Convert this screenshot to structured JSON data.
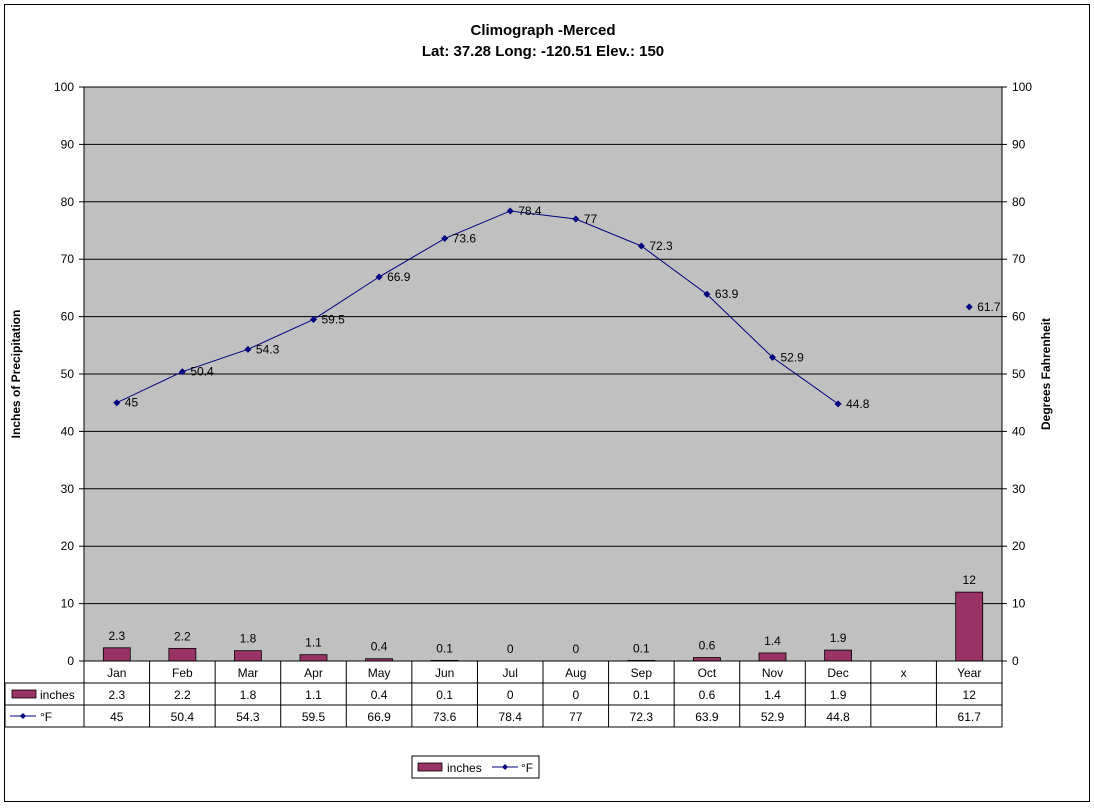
{
  "chart_data": {
    "type": "bar",
    "title": "Climograph -Merced",
    "subtitle": "Lat: 37.28 Long: -120.51 Elev.: 150",
    "ylabel_left": "Inches of Precipitation",
    "ylabel_right": "Degrees Fahrenheit",
    "ylim": [
      0,
      100
    ],
    "yticks": [
      "0",
      "10",
      "20",
      "30",
      "40",
      "50",
      "60",
      "70",
      "80",
      "90",
      "100"
    ],
    "categories": [
      "Jan",
      "Feb",
      "Mar",
      "Apr",
      "May",
      "Jun",
      "Jul",
      "Aug",
      "Sep",
      "Oct",
      "Nov",
      "Dec",
      "x",
      "Year"
    ],
    "grid": true,
    "legend_position": "bottom",
    "series": [
      {
        "name": "inches",
        "kind": "bar",
        "color": "#993366",
        "values": [
          2.3,
          2.2,
          1.8,
          1.1,
          0.4,
          0.1,
          0,
          0,
          0.1,
          0.6,
          1.4,
          1.9,
          null,
          12
        ],
        "labels": [
          "2.3",
          "2.2",
          "1.8",
          "1.1",
          "0.4",
          "0.1",
          "0",
          "0",
          "0.1",
          "0.6",
          "1.4",
          "1.9",
          "",
          "12"
        ]
      },
      {
        "name": "°F",
        "kind": "line",
        "color": "#000080",
        "values": [
          45,
          50.4,
          54.3,
          59.5,
          66.9,
          73.6,
          78.4,
          77,
          72.3,
          63.9,
          52.9,
          44.8,
          null,
          61.7
        ],
        "labels": [
          "45",
          "50.4",
          "54.3",
          "59.5",
          "66.9",
          "73.6",
          "78.4",
          "77",
          "72.3",
          "63.9",
          "52.9",
          "44.8",
          "",
          "61.7"
        ]
      }
    ]
  },
  "colors": {
    "plot_background": "#c0c0c0",
    "bar": "#993366",
    "line": "#000080"
  }
}
